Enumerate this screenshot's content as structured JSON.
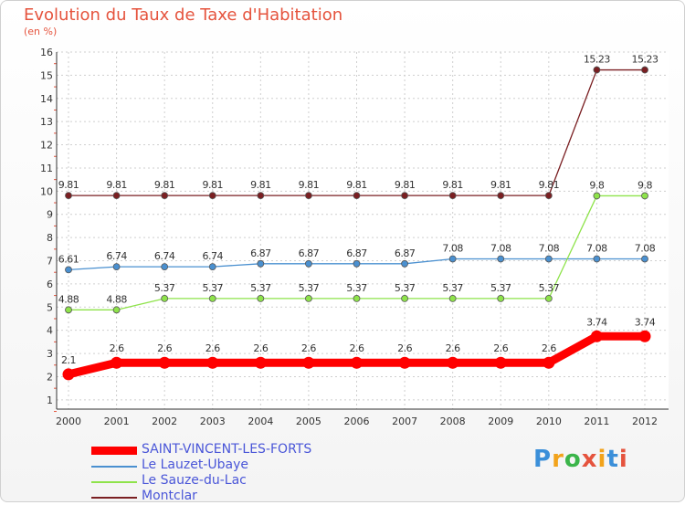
{
  "title": "Evolution du Taux de Taxe d'Habitation",
  "subtitle": "(en %)",
  "logo": {
    "text": "Proxiti",
    "colors": [
      "#3b8fd9",
      "#f2a31b",
      "#3bb54a",
      "#e5533d",
      "#f2a31b",
      "#3b8fd9",
      "#e5533d"
    ]
  },
  "chart_data": {
    "type": "line",
    "x": [
      "2000",
      "2001",
      "2002",
      "2003",
      "2004",
      "2005",
      "2006",
      "2007",
      "2008",
      "2009",
      "2010",
      "2011",
      "2012"
    ],
    "yticks": [
      "1",
      "2",
      "3",
      "4",
      "5",
      "6",
      "7",
      "8",
      "9",
      "10",
      "11",
      "12",
      "13",
      "14",
      "15",
      "16"
    ],
    "ylim": [
      0.6,
      16
    ],
    "grid": true,
    "legend_position": "bottom-left",
    "series": [
      {
        "name": "Montclar",
        "color": "#7a1f22",
        "thick": false,
        "values": [
          9.81,
          9.81,
          9.81,
          9.81,
          9.81,
          9.81,
          9.81,
          9.81,
          9.81,
          9.81,
          9.81,
          15.23,
          15.23
        ],
        "labels": [
          "9.81",
          "9.81",
          "9.81",
          "9.81",
          "9.81",
          "9.81",
          "9.81",
          "9.81",
          "9.81",
          "9.81",
          "9.81",
          "15.23",
          "15.23"
        ]
      },
      {
        "name": "Le Lauzet-Ubaye",
        "color": "#4a90d0",
        "thick": false,
        "values": [
          6.61,
          6.74,
          6.74,
          6.74,
          6.87,
          6.87,
          6.87,
          6.87,
          7.08,
          7.08,
          7.08,
          7.08,
          7.08
        ],
        "labels": [
          "6.61",
          "6.74",
          "6.74",
          "6.74",
          "6.87",
          "6.87",
          "6.87",
          "6.87",
          "7.08",
          "7.08",
          "7.08",
          "7.08",
          "7.08"
        ]
      },
      {
        "name": "Le Sauze-du-Lac",
        "color": "#8ee34a",
        "thick": false,
        "values": [
          4.88,
          4.88,
          5.37,
          5.37,
          5.37,
          5.37,
          5.37,
          5.37,
          5.37,
          5.37,
          5.37,
          9.8,
          9.8
        ],
        "labels": [
          "4.88",
          "4.88",
          "5.37",
          "5.37",
          "5.37",
          "5.37",
          "5.37",
          "5.37",
          "5.37",
          "5.37",
          "5.37",
          "9.8",
          "9.8"
        ]
      },
      {
        "name": "SAINT-VINCENT-LES-FORTS",
        "color": "#ff0000",
        "thick": true,
        "values": [
          2.1,
          2.6,
          2.6,
          2.6,
          2.6,
          2.6,
          2.6,
          2.6,
          2.6,
          2.6,
          2.6,
          3.74,
          3.74
        ],
        "labels": [
          "2.1",
          "2.6",
          "2.6",
          "2.6",
          "2.6",
          "2.6",
          "2.6",
          "2.6",
          "2.6",
          "2.6",
          "2.6",
          "3.74",
          "3.74"
        ]
      }
    ]
  },
  "legend": [
    {
      "name": "SAINT-VINCENT-LES-FORTS",
      "color": "#ff0000",
      "thick": true
    },
    {
      "name": "Le Lauzet-Ubaye",
      "color": "#4a90d0",
      "thick": false
    },
    {
      "name": "Le Sauze-du-Lac",
      "color": "#8ee34a",
      "thick": false
    },
    {
      "name": "Montclar",
      "color": "#7a1f22",
      "thick": false
    }
  ]
}
